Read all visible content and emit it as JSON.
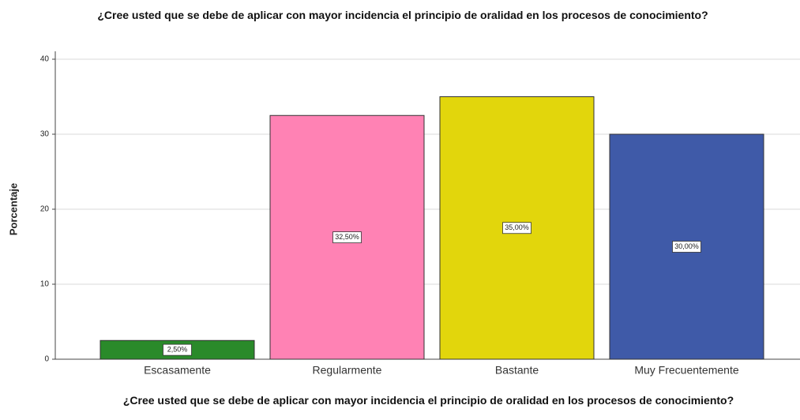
{
  "chart_data": {
    "type": "bar",
    "title": "¿Cree usted que se debe de aplicar con mayor incidencia el principio de oralidad en los procesos de conocimiento?",
    "x_label": "¿Cree usted que se debe de aplicar con mayor incidencia el principio de oralidad en los procesos de conocimiento?",
    "y_label": "Porcentaje",
    "categories": [
      "Escasamente",
      "Regularmente",
      "Bastante",
      "Muy Frecuentemente"
    ],
    "values": [
      2.5,
      32.5,
      35,
      30
    ],
    "value_labels": [
      "2,50%",
      "32,50%",
      "35,00%",
      "30,00%"
    ],
    "colors": [
      "#2a8a2a",
      "#ff82b4",
      "#e2d60c",
      "#3f5aa8"
    ],
    "ylim": [
      0,
      40
    ],
    "yticks": [
      0,
      10,
      20,
      30,
      40
    ],
    "grid": true
  }
}
